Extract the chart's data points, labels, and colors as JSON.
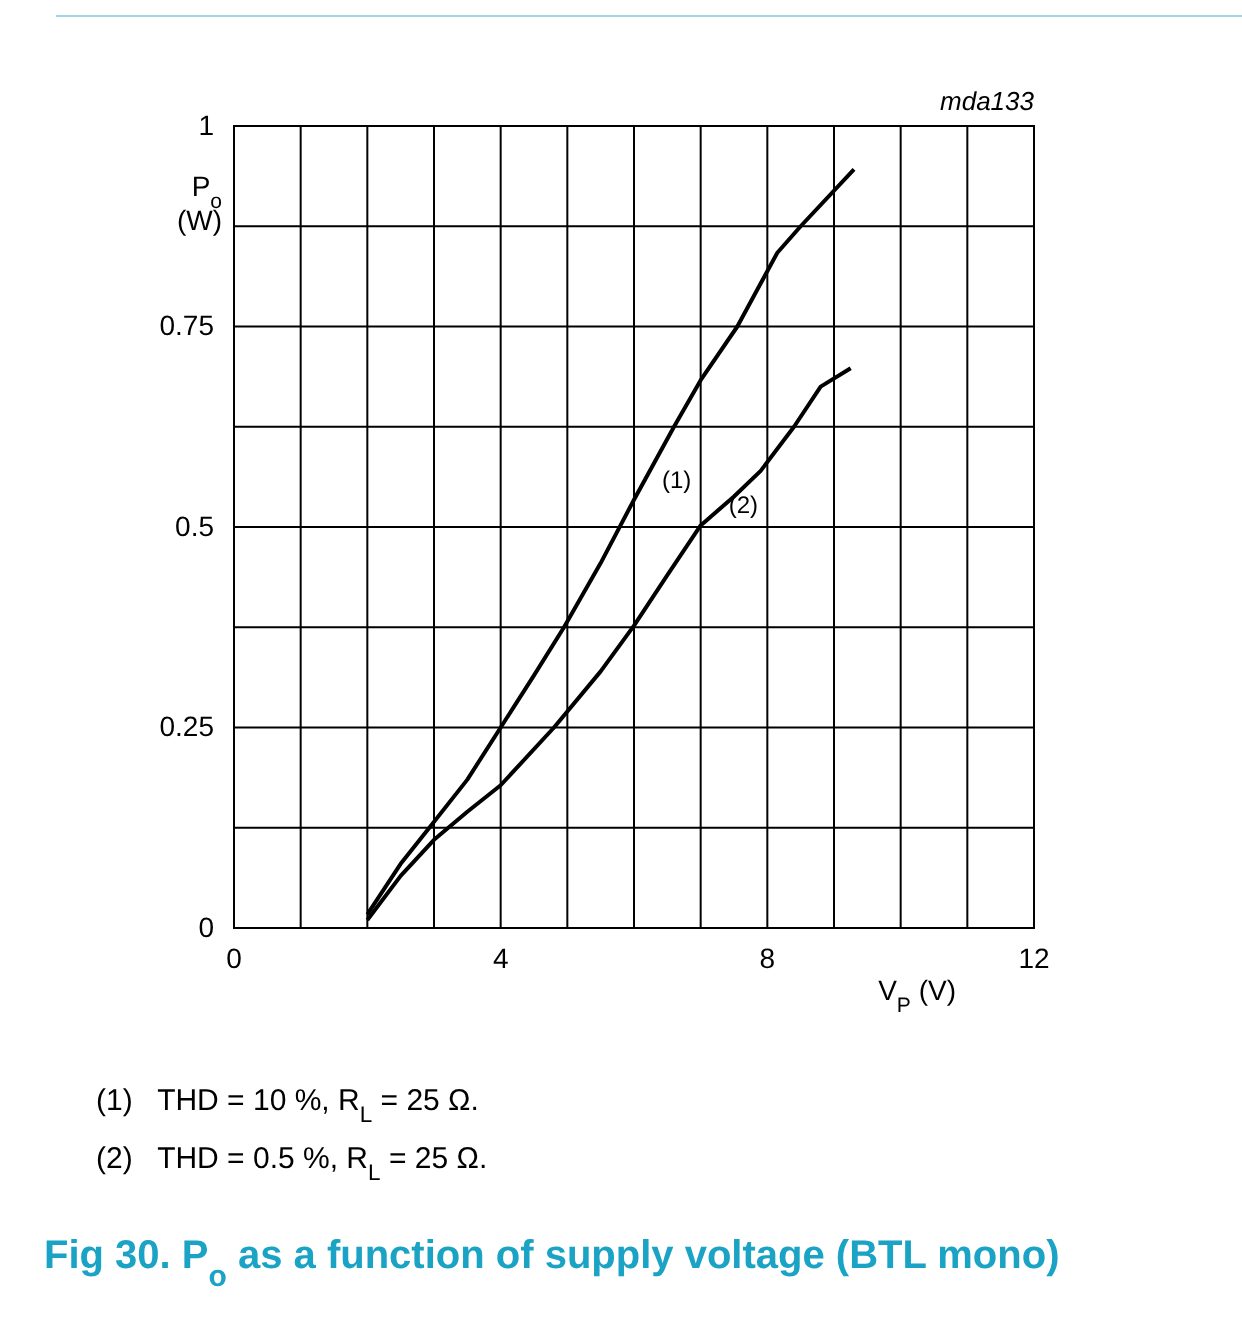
{
  "chart_data": {
    "type": "line",
    "title": "Fig 30. P$_{o}$ as a function of supply voltage (BTL mono)",
    "xlabel": "V$_{P}$ (V)",
    "ylabel": "P$_{o}$ (W)",
    "xlim": [
      0,
      12
    ],
    "ylim": [
      0,
      1
    ],
    "xticks": [
      0,
      {
        "value": 1,
        "label": null
      },
      {
        "value": 2,
        "label": null
      },
      {
        "value": 3,
        "label": null
      },
      4,
      {
        "value": 5,
        "label": null
      },
      {
        "value": 6,
        "label": null
      },
      {
        "value": 7,
        "label": null
      },
      8,
      {
        "value": 9,
        "label": null
      },
      {
        "value": 10,
        "label": null
      },
      {
        "value": 11,
        "label": null
      },
      12
    ],
    "yticks": [
      0,
      {
        "value": 0.125,
        "label": null
      },
      0.25,
      {
        "value": 0.375,
        "label": null
      },
      0.5,
      {
        "value": 0.625,
        "label": null
      },
      0.75,
      {
        "value": 0.875,
        "label": null
      },
      1
    ],
    "grid": true,
    "marker": "none",
    "line_style": "solid",
    "series": [
      {
        "name": "(1)",
        "color": "#000000",
        "x": [
          2,
          2.5,
          2.93,
          3.5,
          4,
          4.5,
          4.95,
          5.5,
          6,
          6.6,
          7,
          7.55,
          8.15,
          8.5,
          9.3
        ],
        "values": [
          0.017,
          0.08,
          0.125,
          0.185,
          0.25,
          0.315,
          0.375,
          0.455,
          0.534,
          0.625,
          0.683,
          0.75,
          0.842,
          0.875,
          0.946
        ]
      },
      {
        "name": "(2)",
        "color": "#000000",
        "x": [
          2,
          2.5,
          3,
          3.5,
          4,
          4.8,
          5.5,
          6,
          6.5,
          7,
          7.5,
          7.9,
          8.4,
          8.8,
          9.25
        ],
        "values": [
          0.01,
          0.065,
          0.11,
          0.145,
          0.178,
          0.25,
          0.32,
          0.377,
          0.44,
          0.502,
          0.538,
          0.57,
          0.625,
          0.675,
          0.698
        ]
      }
    ],
    "annotations": [
      "mda133",
      "(1)   THD = 10 %, R$_{L}$ = 25 Ω.",
      "(2)   THD = 0.5 %, R$_{L}$ = 25 Ω."
    ]
  }
}
